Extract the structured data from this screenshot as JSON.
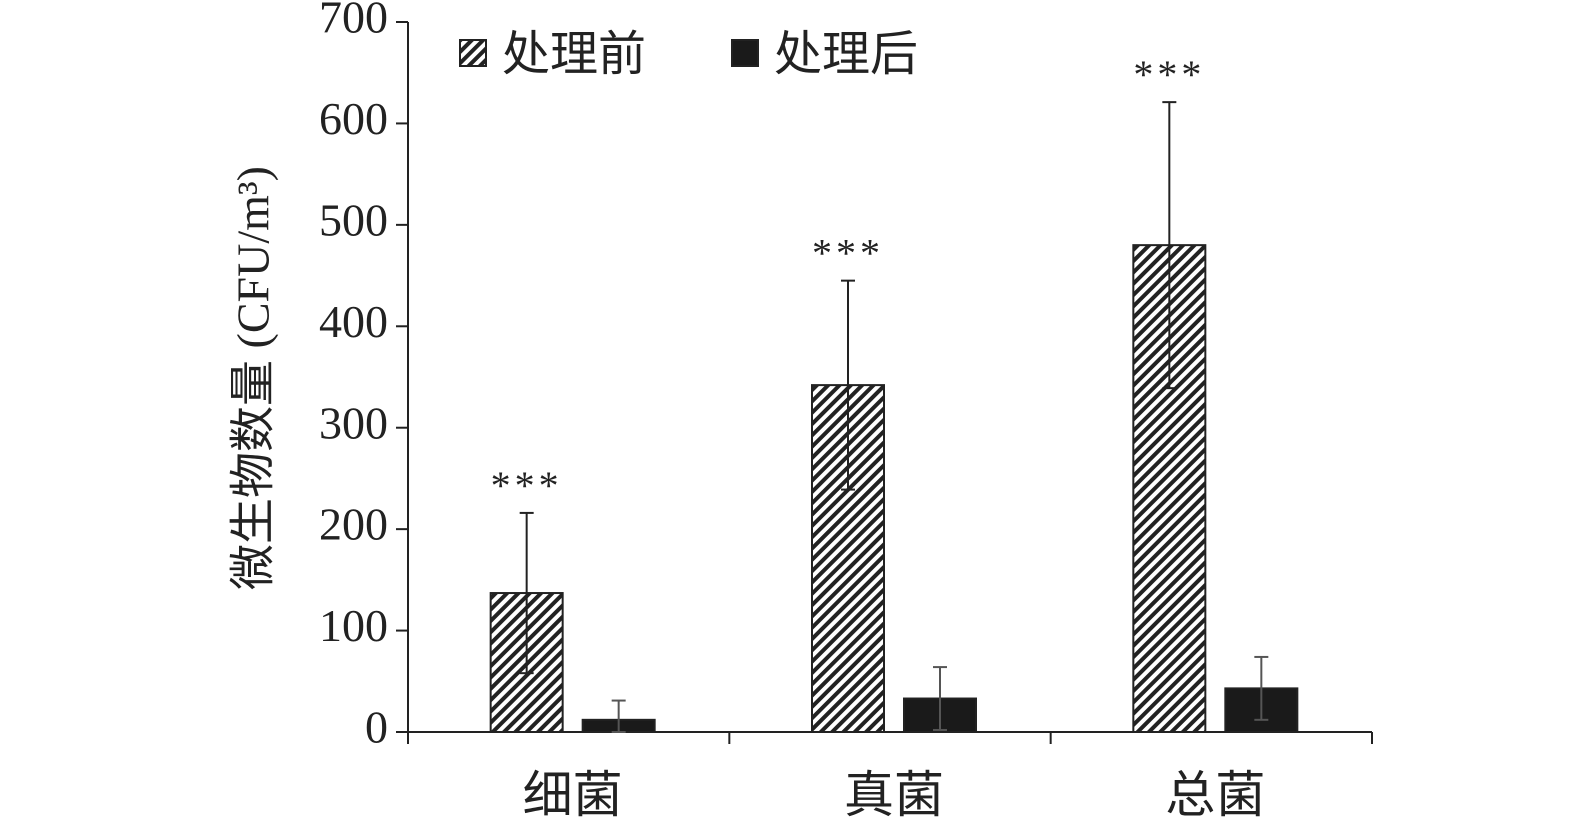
{
  "chart_data": {
    "type": "bar",
    "title": "",
    "xlabel": "",
    "ylabel": "微生物数量 (CFU/m³)",
    "ylim": [
      0,
      700
    ],
    "yticks": [
      0,
      100,
      200,
      300,
      400,
      500,
      600,
      700
    ],
    "categories": [
      "细菌",
      "真菌",
      "总菌"
    ],
    "legend_position": "top-left",
    "grid": false,
    "series": [
      {
        "name": "处理前",
        "pattern": "diagonal-hatch",
        "color": "#222222",
        "values": [
          137,
          342,
          480
        ],
        "errors": [
          79,
          103,
          141
        ]
      },
      {
        "name": "处理后",
        "pattern": "solid",
        "color": "#1a1a1a",
        "values": [
          12,
          33,
          43
        ],
        "errors": [
          19,
          31,
          31
        ]
      }
    ],
    "annotations": [
      {
        "category": "细菌",
        "text": "***"
      },
      {
        "category": "真菌",
        "text": "***"
      },
      {
        "category": "总菌",
        "text": "***"
      }
    ]
  }
}
